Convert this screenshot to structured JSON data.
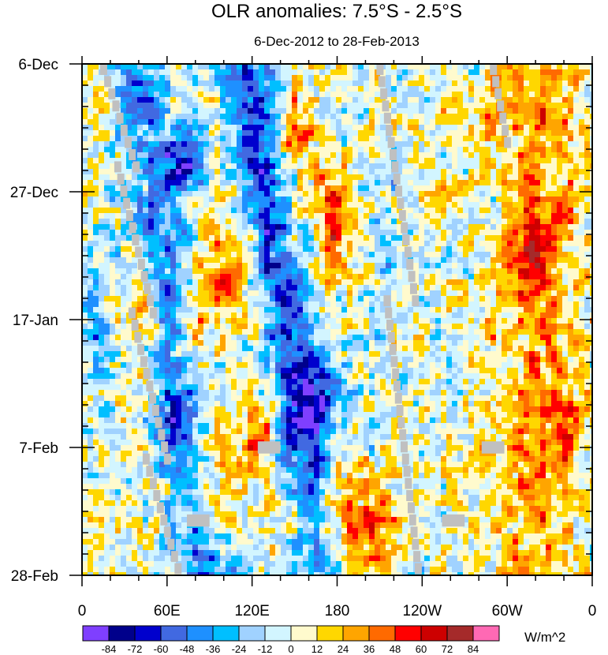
{
  "chart_data": {
    "type": "heatmap",
    "title": "OLR anomalies: 7.5°S - 2.5°S",
    "subtitle": "6-Dec-2012 to 28-Feb-2013",
    "xlabel": "",
    "ylabel": "",
    "x_ticks": [
      "0",
      "60E",
      "120E",
      "180",
      "120W",
      "60W",
      "0"
    ],
    "x_tick_lons": [
      0,
      60,
      120,
      180,
      240,
      300,
      360
    ],
    "y_ticks": [
      "6-Dec",
      "27-Dec",
      "17-Jan",
      "7-Feb",
      "28-Feb"
    ],
    "y_tick_days": [
      0,
      21,
      42,
      63,
      84
    ],
    "xlim": [
      0,
      360
    ],
    "ylim_days": [
      0,
      84
    ],
    "missing_color": "#c0c0c0",
    "colorbar": {
      "unit": "W/m^2",
      "labels": [
        "-84",
        "-72",
        "-60",
        "-48",
        "-36",
        "-24",
        "-12",
        "0",
        "12",
        "24",
        "36",
        "48",
        "60",
        "72",
        "84"
      ],
      "levels": [
        -84,
        -72,
        -60,
        -48,
        -36,
        -24,
        -12,
        0,
        12,
        24,
        36,
        48,
        60,
        72,
        84
      ],
      "colors": [
        "#7f3fff",
        "#00008b",
        "#0000cd",
        "#4169e1",
        "#1e90ff",
        "#00bfff",
        "#a0d2ff",
        "#d2f5ff",
        "#fffacd",
        "#ffd700",
        "#ffa500",
        "#ff6a00",
        "#ff0000",
        "#cd0000",
        "#a52a2a",
        "#ff69b4"
      ]
    },
    "features": [
      {
        "kind": "band",
        "lon0": 40,
        "day0": 0,
        "lon1": 90,
        "day1": 84,
        "width": 20,
        "amp": -40
      },
      {
        "kind": "band",
        "lon0": 115,
        "day0": 0,
        "lon1": 170,
        "day1": 80,
        "width": 18,
        "amp": -55
      },
      {
        "kind": "band",
        "lon0": 195,
        "day0": 0,
        "lon1": 235,
        "day1": 84,
        "width": 20,
        "amp": -8
      },
      {
        "kind": "band",
        "lon0": 325,
        "day0": 0,
        "lon1": 320,
        "day1": 84,
        "width": 28,
        "amp": 30
      },
      {
        "kind": "blob",
        "lon": 150,
        "day": 12,
        "rl": 10,
        "rd": 6,
        "amp": 55
      },
      {
        "kind": "blob",
        "lon": 180,
        "day": 25,
        "rl": 14,
        "rd": 9,
        "amp": 50
      },
      {
        "kind": "blob",
        "lon": 100,
        "day": 34,
        "rl": 16,
        "rd": 8,
        "amp": 42
      },
      {
        "kind": "blob",
        "lon": 80,
        "day": 42,
        "rl": 12,
        "rd": 7,
        "amp": 40
      },
      {
        "kind": "blob",
        "lon": 125,
        "day": 60,
        "rl": 10,
        "rd": 5,
        "amp": 45
      },
      {
        "kind": "blob",
        "lon": 95,
        "day": 68,
        "rl": 18,
        "rd": 8,
        "amp": 38
      },
      {
        "kind": "blob",
        "lon": 190,
        "day": 76,
        "rl": 32,
        "rd": 10,
        "amp": 45
      },
      {
        "kind": "blob",
        "lon": 45,
        "day": 40,
        "rl": 12,
        "rd": 6,
        "amp": 30
      },
      {
        "kind": "blob",
        "lon": 315,
        "day": 32,
        "rl": 14,
        "rd": 8,
        "amp": 30
      },
      {
        "kind": "blob",
        "lon": 342,
        "day": 60,
        "rl": 8,
        "rd": 8,
        "amp": 35
      },
      {
        "kind": "blob",
        "lon": 290,
        "day": 8,
        "rl": 10,
        "rd": 6,
        "amp": 28
      },
      {
        "kind": "blob",
        "lon": 75,
        "day": 16,
        "rl": 14,
        "rd": 5,
        "amp": -60
      },
      {
        "kind": "blob",
        "lon": 60,
        "day": 60,
        "rl": 12,
        "rd": 6,
        "amp": -40
      },
      {
        "kind": "blob",
        "lon": 165,
        "day": 54,
        "rl": 14,
        "rd": 8,
        "amp": -55
      },
      {
        "kind": "blob",
        "lon": 10,
        "day": 42,
        "rl": 10,
        "rd": 12,
        "amp": -30
      },
      {
        "kind": "blob",
        "lon": 225,
        "day": 34,
        "rl": 18,
        "rd": 14,
        "amp": -6
      }
    ],
    "missing_segments": [
      {
        "lon0": 15,
        "day0": 0,
        "lon1": 38,
        "day1": 16
      },
      {
        "lon0": 25,
        "day0": 16,
        "lon1": 50,
        "day1": 40
      },
      {
        "lon0": 35,
        "day0": 40,
        "lon1": 60,
        "day1": 64
      },
      {
        "lon0": 45,
        "day0": 64,
        "lon1": 70,
        "day1": 84
      },
      {
        "lon0": 210,
        "day0": 0,
        "lon1": 235,
        "day1": 38
      },
      {
        "lon0": 215,
        "day0": 38,
        "lon1": 238,
        "day1": 84
      },
      {
        "lon0": 290,
        "day0": 0,
        "lon1": 300,
        "day1": 12
      }
    ],
    "missing_patches": [
      {
        "lon": 132,
        "day": 63,
        "wl": 16,
        "wd": 2
      },
      {
        "lon": 290,
        "day": 63,
        "wl": 16,
        "wd": 2
      },
      {
        "lon": 82,
        "day": 75,
        "wl": 16,
        "wd": 2
      },
      {
        "lon": 262,
        "day": 75,
        "wl": 16,
        "wd": 2
      }
    ]
  }
}
